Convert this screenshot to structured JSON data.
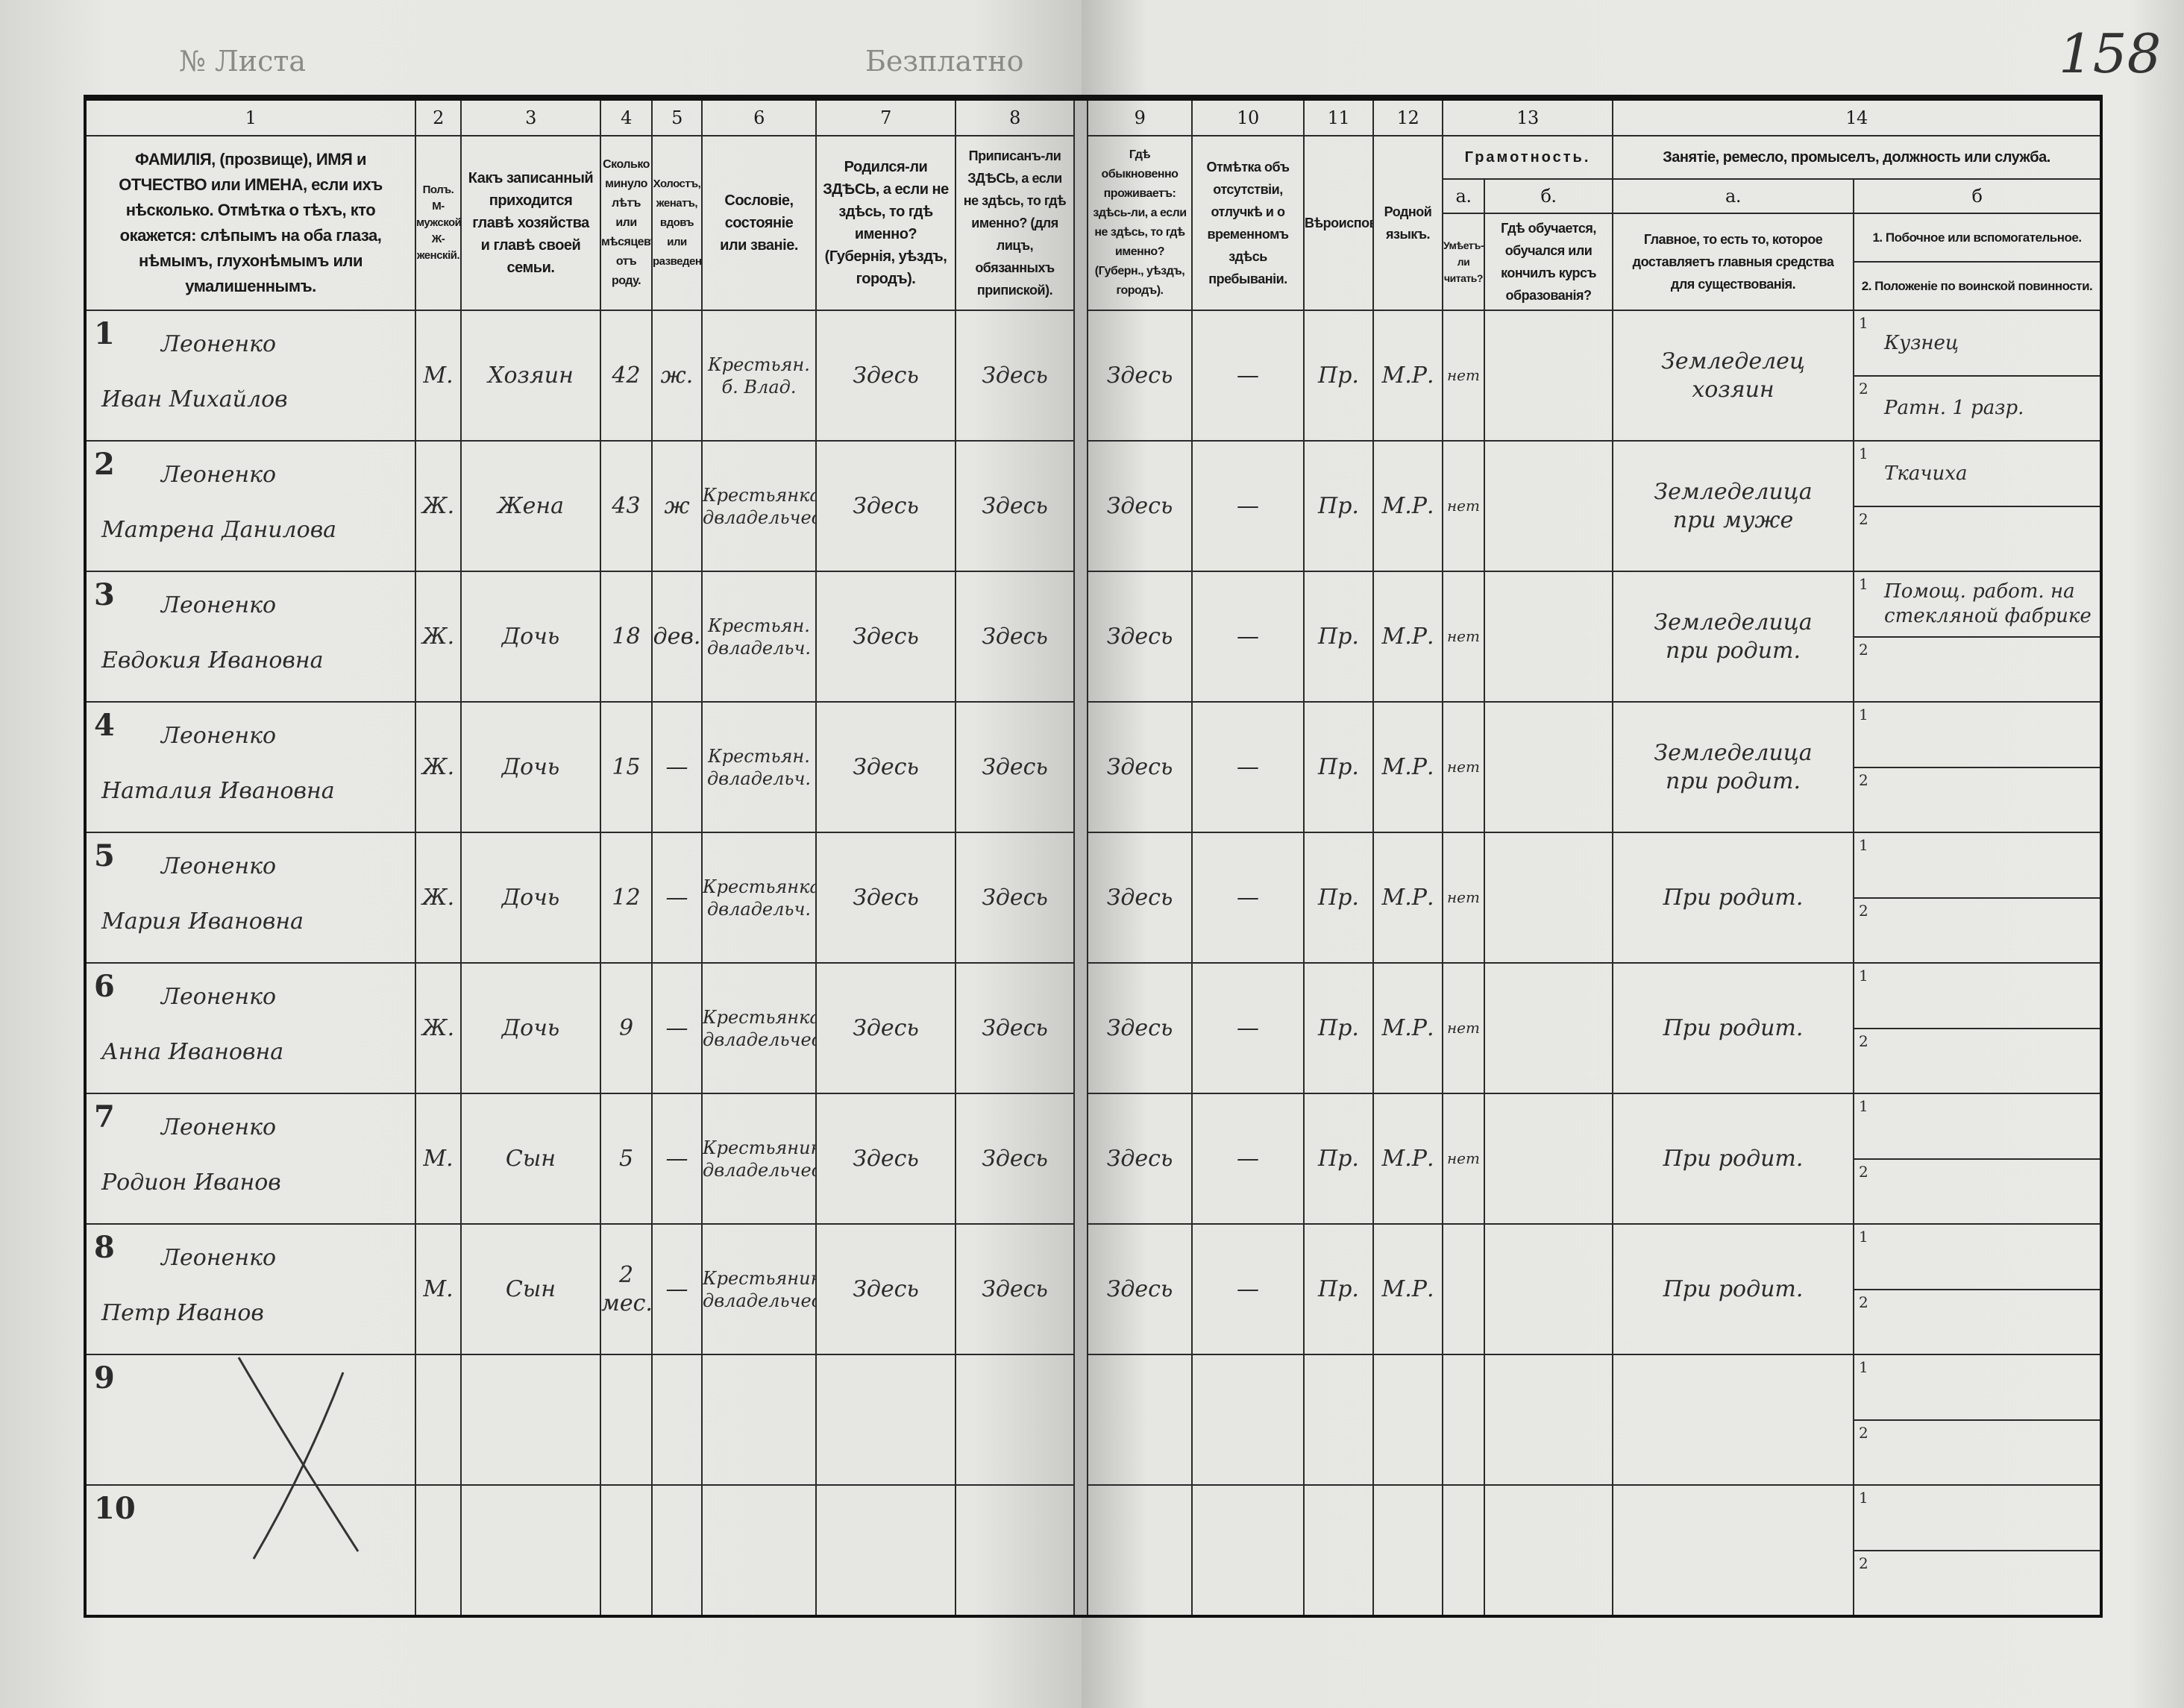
{
  "header_marks": {
    "sheet_no": "№ Листа",
    "free": "Безплатно",
    "folio": "158"
  },
  "columns": {
    "numbers": [
      "1",
      "2",
      "3",
      "4",
      "5",
      "6",
      "7",
      "8",
      "9",
      "10",
      "11",
      "12",
      "13",
      "14"
    ],
    "c1": "ФАМИЛІЯ, (прозвище), ИМЯ и ОТЧЕСТВО или ИМЕНА, если ихъ нѣсколько. Отмѣтка о тѣхъ, кто окажется: слѣпымъ на оба глаза, нѣмымъ, глухонѣмымъ или умалишеннымъ.",
    "c2": "Полъ. М-мужской. Ж-женскій.",
    "c3": "Какъ записанный приходится главѣ хозяйства и главѣ своей семьи.",
    "c4": "Сколько минуло лѣтъ или мѣсяцевъ отъ роду.",
    "c5": "Холостъ, женатъ, вдовъ или разведенъ.",
    "c6": "Сословіе, состояніе или званіе.",
    "c7": "Родился-ли ЗДѢСЬ, а если не здѣсь, то гдѣ именно? (Губернія, уѣздъ, городъ).",
    "c8": "Приписанъ-ли ЗДѢСЬ, а если не здѣсь, то гдѣ именно? (для лицъ, обязанныхъ припиской).",
    "c9": "Гдѣ обыкновенно проживаетъ: здѣсь-ли, а если не здѣсь, то гдѣ именно? (Губерн., уѣздъ, городъ).",
    "c10": "Отмѣтка объ отсутствіи, отлучкѣ и о временномъ здѣсь пребываніи.",
    "c11": "Вѣроисповѣданіе.",
    "c12": "Родной языкъ.",
    "c13": "Грамотность.",
    "c13a_label": "а.",
    "c13a": "Умѣетъ-ли читать?",
    "c13b_label": "б.",
    "c13b": "Гдѣ обучается, обучался или кончилъ курсъ образованія?",
    "c14": "Занятіе, ремесло, промыселъ, должность или служба.",
    "c14a_label": "а.",
    "c14a": "Главное, то есть то, которое доставляетъ главныя средства для существованія.",
    "c14b_label": "б",
    "c14b1": "1. Побочное или вспомогательное.",
    "c14b2": "2. Положеніе по воинской повинности."
  },
  "rows": [
    {
      "num": "1",
      "surname": "Леоненко",
      "given": "Иван Михайлов",
      "sex": "М.",
      "relation": "Хозяин",
      "age": "42",
      "marital": "ж.",
      "estate": "Крестьян. б. Влад.",
      "born": "Здесь",
      "registered": "Здесь",
      "resides": "Здесь",
      "absence": "—",
      "religion": "Пр.",
      "language": "М.Р.",
      "literate": "нет",
      "education": "",
      "occ_main": "Земледелец хозяин",
      "occ_side": "Кузнец",
      "military": "Ратн. 1 разр."
    },
    {
      "num": "2",
      "surname": "Леоненко",
      "given": "Матрена Данилова",
      "sex": "Ж.",
      "relation": "Жена",
      "age": "43",
      "marital": "ж",
      "estate": "Крестьянка двладельческ.",
      "born": "Здесь",
      "registered": "Здесь",
      "resides": "Здесь",
      "absence": "—",
      "religion": "Пр.",
      "language": "М.Р.",
      "literate": "нет",
      "education": "",
      "occ_main": "Земледелица при муже",
      "occ_side": "Ткачиха",
      "military": ""
    },
    {
      "num": "3",
      "surname": "Леоненко",
      "given": "Евдокия Ивановна",
      "sex": "Ж.",
      "relation": "Дочь",
      "age": "18",
      "marital": "дев.",
      "estate": "Крестьян. двладельч.",
      "born": "Здесь",
      "registered": "Здесь",
      "resides": "Здесь",
      "absence": "—",
      "religion": "Пр.",
      "language": "М.Р.",
      "literate": "нет",
      "education": "",
      "occ_main": "Земледелица при родит.",
      "occ_side": "Помощ. работ. на стекляной фабрике",
      "military": ""
    },
    {
      "num": "4",
      "surname": "Леоненко",
      "given": "Наталия Ивановна",
      "sex": "Ж.",
      "relation": "Дочь",
      "age": "15",
      "marital": "—",
      "estate": "Крестьян. двладельч.",
      "born": "Здесь",
      "registered": "Здесь",
      "resides": "Здесь",
      "absence": "—",
      "religion": "Пр.",
      "language": "М.Р.",
      "literate": "нет",
      "education": "",
      "occ_main": "Земледелица при родит.",
      "occ_side": "",
      "military": ""
    },
    {
      "num": "5",
      "surname": "Леоненко",
      "given": "Мария Ивановна",
      "sex": "Ж.",
      "relation": "Дочь",
      "age": "12",
      "marital": "—",
      "estate": "Крестьянка двладельч.",
      "born": "Здесь",
      "registered": "Здесь",
      "resides": "Здесь",
      "absence": "—",
      "religion": "Пр.",
      "language": "М.Р.",
      "literate": "нет",
      "education": "",
      "occ_main": "При родит.",
      "occ_side": "",
      "military": ""
    },
    {
      "num": "6",
      "surname": "Леоненко",
      "given": "Анна Ивановна",
      "sex": "Ж.",
      "relation": "Дочь",
      "age": "9",
      "marital": "—",
      "estate": "Крестьянка двладельческ.",
      "born": "Здесь",
      "registered": "Здесь",
      "resides": "Здесь",
      "absence": "—",
      "religion": "Пр.",
      "language": "М.Р.",
      "literate": "нет",
      "education": "",
      "occ_main": "При родит.",
      "occ_side": "",
      "military": ""
    },
    {
      "num": "7",
      "surname": "Леоненко",
      "given": "Родион Иванов",
      "sex": "М.",
      "relation": "Сын",
      "age": "5",
      "marital": "—",
      "estate": "Крестьянин двладельческ.",
      "born": "Здесь",
      "registered": "Здесь",
      "resides": "Здесь",
      "absence": "—",
      "religion": "Пр.",
      "language": "М.Р.",
      "literate": "нет",
      "education": "",
      "occ_main": "При родит.",
      "occ_side": "",
      "military": ""
    },
    {
      "num": "8",
      "surname": "Леоненко",
      "given": "Петр Иванов",
      "sex": "М.",
      "relation": "Сын",
      "age": "2 мес.",
      "marital": "—",
      "estate": "Крестьянин двладельческ.",
      "born": "Здесь",
      "registered": "Здесь",
      "resides": "Здесь",
      "absence": "—",
      "religion": "Пр.",
      "language": "М.Р.",
      "literate": "",
      "education": "",
      "occ_main": "При родит.",
      "occ_side": "",
      "military": ""
    },
    {
      "num": "9",
      "surname": "",
      "given": "",
      "sex": "",
      "relation": "",
      "age": "",
      "marital": "",
      "estate": "",
      "born": "",
      "registered": "",
      "resides": "",
      "absence": "",
      "religion": "",
      "language": "",
      "literate": "",
      "education": "",
      "occ_main": "",
      "occ_side": "",
      "military": ""
    },
    {
      "num": "10",
      "surname": "",
      "given": "",
      "sex": "",
      "relation": "",
      "age": "",
      "marital": "",
      "estate": "",
      "born": "",
      "registered": "",
      "resides": "",
      "absence": "",
      "religion": "",
      "language": "",
      "literate": "",
      "education": "",
      "occ_main": "",
      "occ_side": "",
      "military": ""
    }
  ],
  "sub_numbers": [
    "1",
    "2"
  ]
}
